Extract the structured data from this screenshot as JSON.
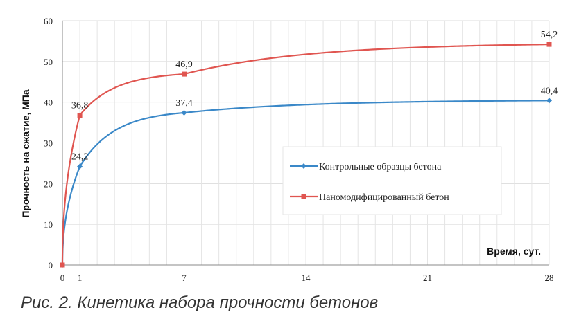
{
  "caption": "Рис. 2. Кинетика набора прочности бетонов",
  "chart_data": {
    "type": "line",
    "xlabel": "Время, сут.",
    "ylabel": "Прочность на сжатие, МПа",
    "xlim": [
      0,
      28
    ],
    "ylim": [
      0,
      60
    ],
    "xticks": [
      0,
      1,
      7,
      14,
      21,
      28
    ],
    "yticks": [
      0,
      10,
      20,
      30,
      40,
      50,
      60
    ],
    "grid": true,
    "legend_position": "center-right",
    "series": [
      {
        "name": "Контрольные образцы бетона",
        "color": "#3a88c8",
        "marker": "diamond",
        "x": [
          0,
          1,
          7,
          28
        ],
        "y": [
          0,
          24.2,
          37.4,
          40.4
        ],
        "labels": [
          "",
          "24,2",
          "37,4",
          "40,4"
        ]
      },
      {
        "name": "Наномодифицированный бетон",
        "color": "#e05550",
        "marker": "square",
        "x": [
          0,
          1,
          7,
          28
        ],
        "y": [
          0,
          36.8,
          46.9,
          54.2
        ],
        "labels": [
          "",
          "36,8",
          "46,9",
          "54,2"
        ]
      }
    ]
  }
}
